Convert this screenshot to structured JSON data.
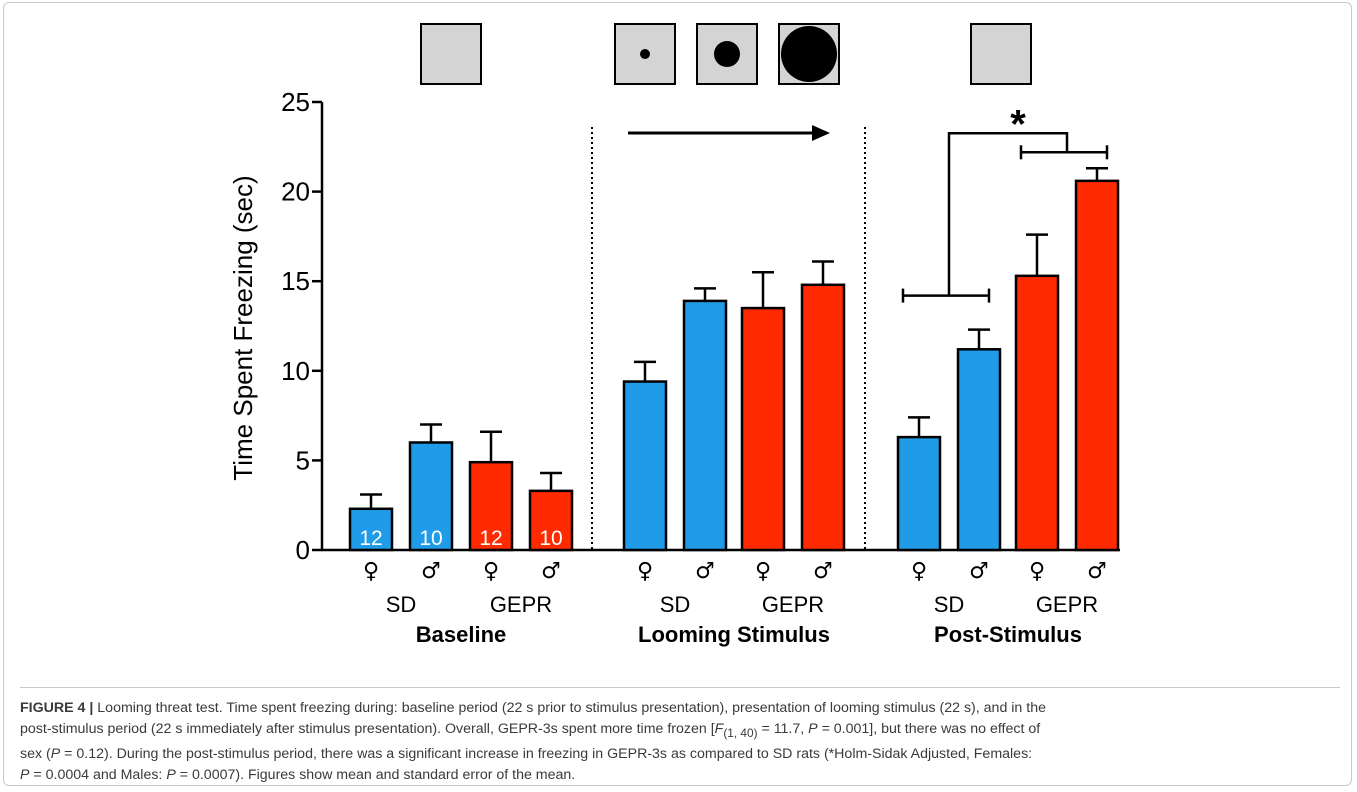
{
  "chart_data": {
    "type": "bar",
    "ylabel": "Time Spent Freezing (sec)",
    "ylim": [
      0,
      25
    ],
    "yticks": [
      0,
      5,
      10,
      15,
      20,
      25
    ],
    "grid": false,
    "periods": [
      {
        "name": "Baseline",
        "group_labels": [
          "SD",
          "GEPR"
        ],
        "bars": [
          {
            "strain": "SD",
            "sex": "♀",
            "value": 2.3,
            "error": 0.8,
            "n": "12",
            "color": "#1f9be8"
          },
          {
            "strain": "SD",
            "sex": "♂",
            "value": 6.0,
            "error": 1.0,
            "n": "10",
            "color": "#1f9be8"
          },
          {
            "strain": "GEPR",
            "sex": "♀",
            "value": 4.9,
            "error": 1.7,
            "n": "12",
            "color": "#ff2a00"
          },
          {
            "strain": "GEPR",
            "sex": "♂",
            "value": 3.3,
            "error": 1.0,
            "n": "10",
            "color": "#ff2a00"
          }
        ]
      },
      {
        "name": "Looming Stimulus",
        "group_labels": [
          "SD",
          "GEPR"
        ],
        "bars": [
          {
            "strain": "SD",
            "sex": "♀",
            "value": 9.4,
            "error": 1.1,
            "color": "#1f9be8"
          },
          {
            "strain": "SD",
            "sex": "♂",
            "value": 13.9,
            "error": 0.7,
            "color": "#1f9be8"
          },
          {
            "strain": "GEPR",
            "sex": "♀",
            "value": 13.5,
            "error": 2.0,
            "color": "#ff2a00"
          },
          {
            "strain": "GEPR",
            "sex": "♂",
            "value": 14.8,
            "error": 1.3,
            "color": "#ff2a00"
          }
        ]
      },
      {
        "name": "Post-Stimulus",
        "group_labels": [
          "SD",
          "GEPR"
        ],
        "bars": [
          {
            "strain": "SD",
            "sex": "♀",
            "value": 6.3,
            "error": 1.1,
            "color": "#1f9be8"
          },
          {
            "strain": "SD",
            "sex": "♂",
            "value": 11.2,
            "error": 1.1,
            "color": "#1f9be8"
          },
          {
            "strain": "GEPR",
            "sex": "♀",
            "value": 15.3,
            "error": 2.3,
            "color": "#ff2a00"
          },
          {
            "strain": "GEPR",
            "sex": "♂",
            "value": 20.6,
            "error": 0.7,
            "color": "#ff2a00"
          }
        ]
      }
    ],
    "significance": {
      "label": "*",
      "between": [
        "SD",
        "GEPR"
      ],
      "period": "Post-Stimulus"
    },
    "stimulus_icons": {
      "baseline": "empty-square",
      "looming": [
        "small-dot",
        "medium-dot",
        "large-dot"
      ],
      "post": "empty-square"
    }
  },
  "caption": {
    "label": "FIGURE 4 |",
    "line1": " Looming threat test. Time spent freezing during: baseline period (22 s prior to stimulus presentation), presentation of looming stimulus (22 s), and in the",
    "line2a": "post-stimulus period (22 s immediately after stimulus presentation). Overall, GEPR-3s spent more time frozen [",
    "line2_F": "F",
    "line2_sub": "(1, 40)",
    "line2_stat": " = 11.7, ",
    "line2_P": "P",
    "line2b": " =  0.001], but there was no effect of",
    "line3a": "sex (",
    "line3_P": "P",
    "line3b": " = 0.12). During the post-stimulus period, there was a significant increase in freezing in GEPR-3s as compared to SD rats (*Holm-Sidak Adjusted, Females:",
    "line4_P1": "P",
    "line4a": " = 0.0004 and Males: ",
    "line4_P2": "P",
    "line4b": " = 0.0007). Figures show mean and standard error of the mean."
  }
}
